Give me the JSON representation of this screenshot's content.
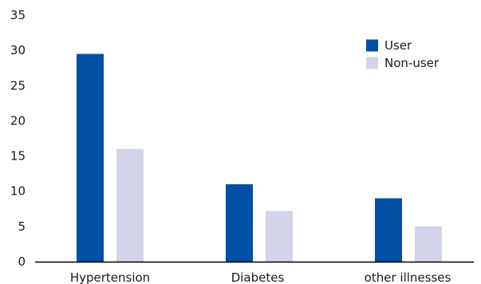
{
  "chart_data": {
    "type": "bar",
    "categories": [
      "Hypertension",
      "Diabetes",
      "other illnesses"
    ],
    "series": [
      {
        "name": "User",
        "values": [
          29.5,
          11,
          9
        ],
        "color": "#0250a3"
      },
      {
        "name": "Non-user",
        "values": [
          16,
          7.2,
          5
        ],
        "color": "#d3d4ea"
      }
    ],
    "ylim": [
      0,
      35
    ],
    "yticks": [
      0,
      5,
      10,
      15,
      20,
      25,
      30,
      35
    ],
    "grid": false,
    "legend_position": "top-right",
    "axis_color": "#000000"
  }
}
